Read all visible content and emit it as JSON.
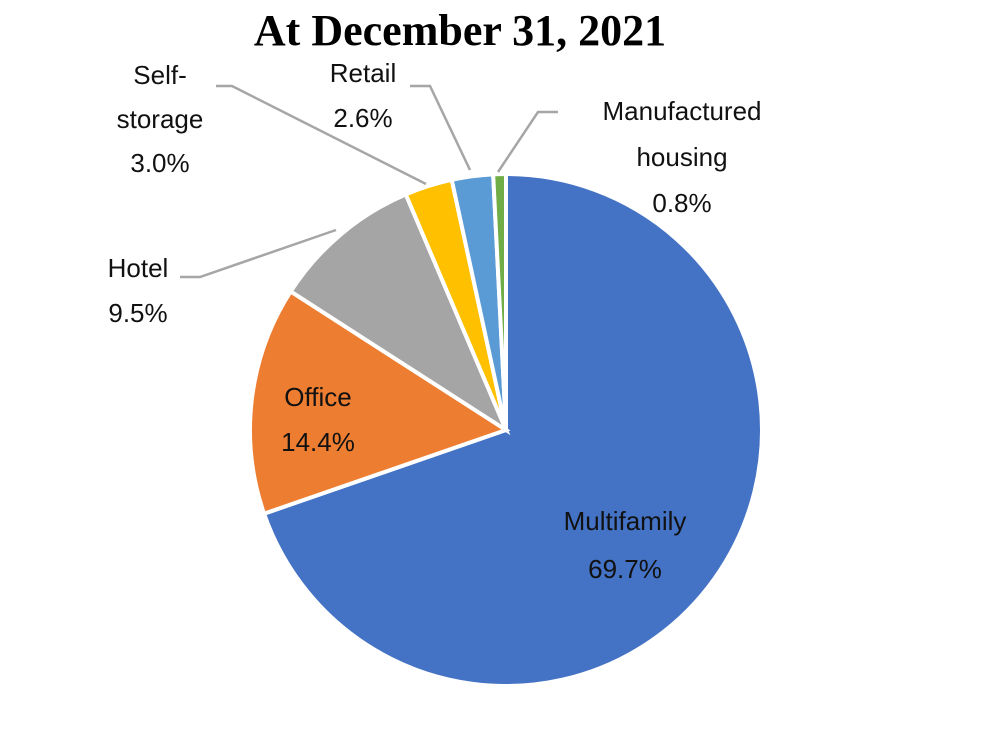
{
  "chart_data": {
    "type": "pie",
    "title": "At December 31, 2021",
    "start_angle": "12 o'clock, clockwise",
    "slices": [
      {
        "label": "Multifamily",
        "value": 69.7,
        "display": "69.7%",
        "color": "#4472C4"
      },
      {
        "label": "Office",
        "value": 14.4,
        "display": "14.4%",
        "color": "#ED7D31"
      },
      {
        "label": "Hotel",
        "value": 9.5,
        "display": "9.5%",
        "color": "#A5A5A5"
      },
      {
        "label": "Self-storage",
        "label_lines": [
          "Self-",
          "storage"
        ],
        "value": 3.0,
        "display": "3.0%",
        "color": "#FFC000"
      },
      {
        "label": "Retail",
        "value": 2.6,
        "display": "2.6%",
        "color": "#5B9BD5"
      },
      {
        "label": "Manufactured housing",
        "label_lines": [
          "Manufactured",
          "housing"
        ],
        "value": 0.8,
        "display": "0.8%",
        "color": "#70AD47"
      }
    ]
  }
}
